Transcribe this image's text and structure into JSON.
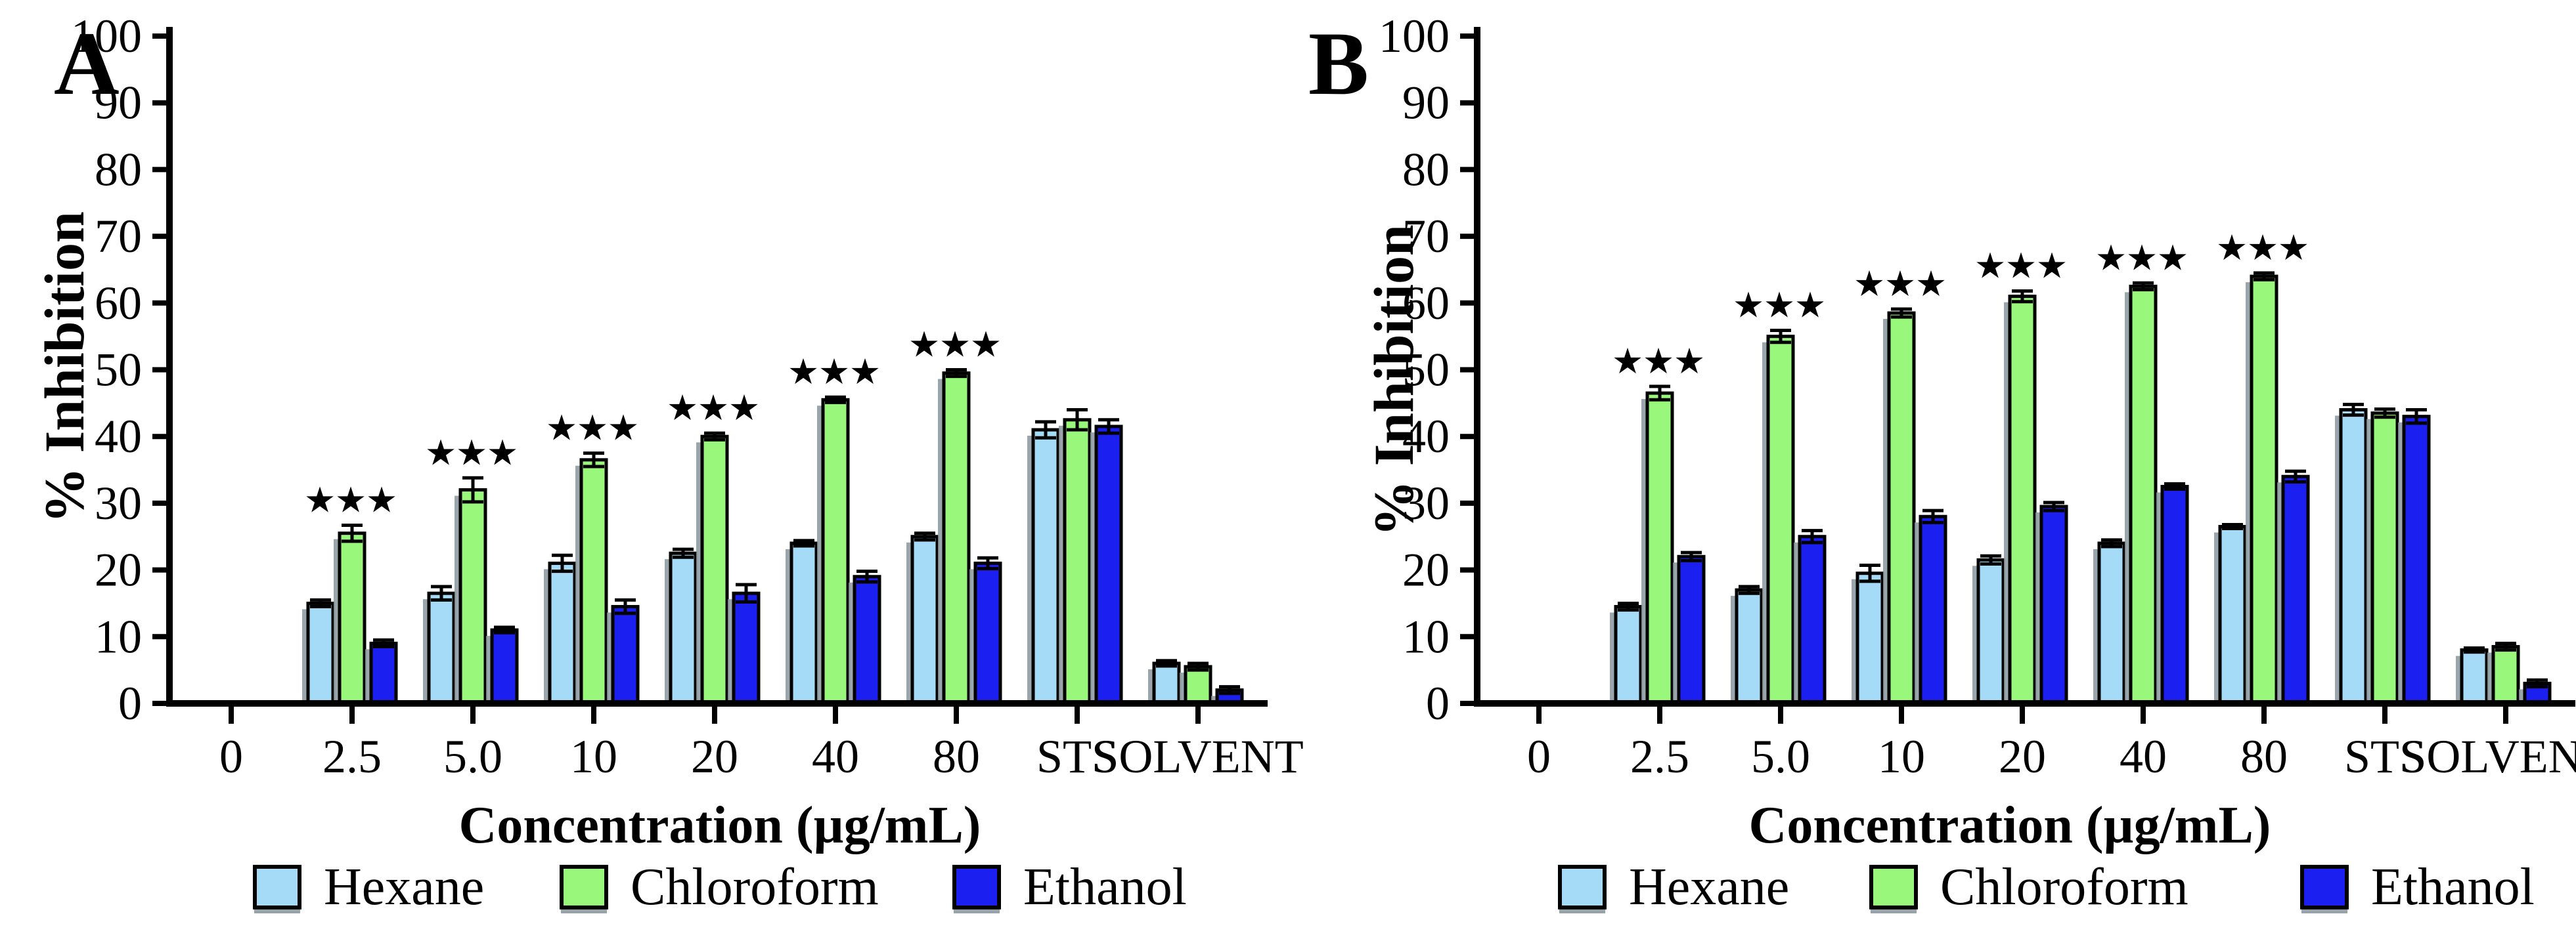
{
  "figure": {
    "background": "#FFFFFF",
    "axis_color": "#000000",
    "shadow_color": "#8A969D",
    "text_color": "#000000"
  },
  "chart_data": [
    {
      "type": "bar",
      "panel_label": "A",
      "xlabel": "Concentration (µg/mL)",
      "ylabel": "% Inhibition",
      "ylim": [
        0,
        100
      ],
      "ytick_step": 10,
      "grid": false,
      "legend_position": "bottom",
      "categories": [
        "0",
        "2.5",
        "5.0",
        "10",
        "20",
        "40",
        "80",
        "STS",
        "SOLVENT"
      ],
      "series": [
        {
          "name": "Hexane",
          "color": "#A6DBF7",
          "values": [
            0,
            15,
            16.5,
            21,
            22.5,
            24,
            25,
            41,
            6
          ],
          "errors": [
            0,
            0.5,
            1,
            1.2,
            0.6,
            0.4,
            0.5,
            1.2,
            0.4
          ],
          "significance": [
            "",
            "",
            "",
            "",
            "",
            "",
            "",
            "",
            ""
          ]
        },
        {
          "name": "Chloroform",
          "color": "#99F87B",
          "values": [
            0,
            25.5,
            32,
            36.5,
            40,
            45.5,
            49.5,
            42.5,
            5.5
          ],
          "errors": [
            0,
            1.2,
            1.8,
            1,
            0.5,
            0.4,
            0.5,
            1.5,
            0.5
          ],
          "significance": [
            "",
            "★★★",
            "★★★",
            "★★★",
            "★★★",
            "★★★",
            "★★★",
            "",
            ""
          ]
        },
        {
          "name": "Ethanol",
          "color": "#1B1FEF",
          "values": [
            0,
            9,
            11,
            14.5,
            16.5,
            19,
            21,
            41.5,
            2
          ],
          "errors": [
            0,
            0.5,
            0.4,
            1,
            1.3,
            0.8,
            0.8,
            1,
            0.5
          ],
          "significance": [
            "",
            "",
            "",
            "",
            "",
            "",
            "",
            "",
            ""
          ]
        }
      ]
    },
    {
      "type": "bar",
      "panel_label": "B",
      "xlabel": "Concentration (µg/mL)",
      "ylabel": "% Inhibition",
      "ylim": [
        0,
        100
      ],
      "ytick_step": 10,
      "grid": false,
      "legend_position": "bottom",
      "categories": [
        "0",
        "2.5",
        "5.0",
        "10",
        "20",
        "40",
        "80",
        "STS",
        "SOLVENT"
      ],
      "series": [
        {
          "name": "Hexane",
          "color": "#A6DBF7",
          "values": [
            0,
            14.5,
            17,
            19.5,
            21.5,
            24,
            26.5,
            44,
            8
          ],
          "errors": [
            0,
            0.5,
            0.5,
            1.2,
            0.6,
            0.5,
            0.3,
            0.8,
            0.3
          ],
          "significance": [
            "",
            "",
            "",
            "",
            "",
            "",
            "",
            "",
            ""
          ]
        },
        {
          "name": "Chloroform",
          "color": "#99F87B",
          "values": [
            0,
            46.5,
            55,
            58.5,
            61,
            62.5,
            64,
            43.5,
            8.5
          ],
          "errors": [
            0,
            1,
            0.9,
            0.6,
            0.8,
            0.5,
            0.5,
            0.6,
            0.5
          ],
          "significance": [
            "",
            "★★★",
            "★★★",
            "★★★",
            "★★★",
            "★★★",
            "★★★",
            "",
            ""
          ]
        },
        {
          "name": "Ethanol",
          "color": "#1B1FEF",
          "values": [
            0,
            22,
            25,
            28,
            29.5,
            32.5,
            34,
            43,
            3
          ],
          "errors": [
            0,
            0.6,
            0.9,
            0.9,
            0.6,
            0.4,
            0.8,
            1,
            0.5
          ],
          "significance": [
            "",
            "",
            "",
            "",
            "",
            "",
            "",
            "",
            ""
          ]
        }
      ]
    }
  ]
}
